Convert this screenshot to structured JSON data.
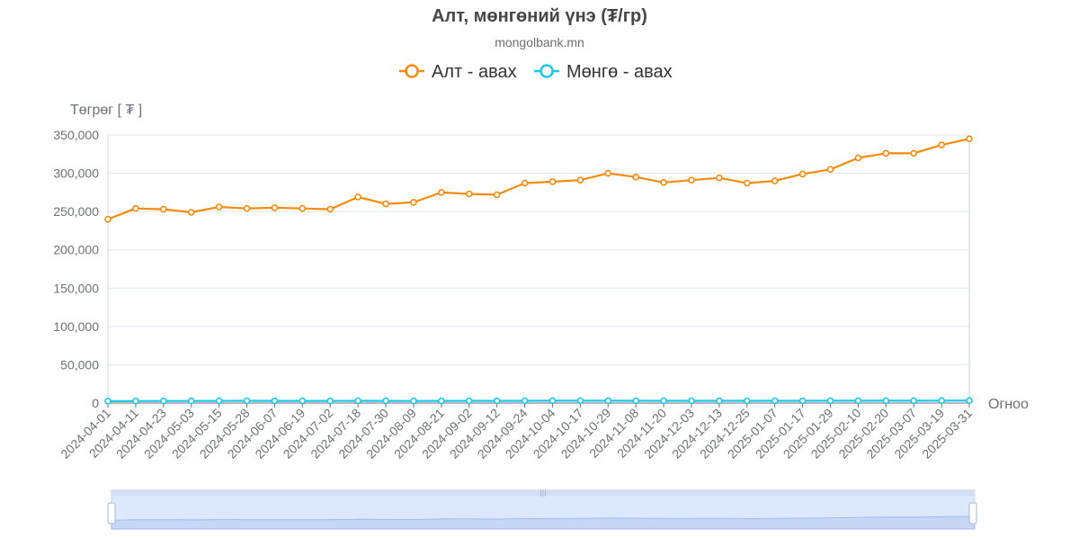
{
  "chart_data": {
    "type": "line",
    "title": "Алт, мөнгөний үнэ (₮/гр)",
    "subtitle": "mongolbank.mn",
    "ylabel": "Төгрөг [ ₮ ]",
    "xlabel": "Огноо",
    "ylim": [
      0,
      350000
    ],
    "y_ticks": [
      "0",
      "50,000",
      "100,000",
      "150,000",
      "200,000",
      "250,000",
      "300,000",
      "350,000"
    ],
    "grid": "horizontal",
    "legend_position": "top-center",
    "x": [
      "2024-04-01",
      "2024-04-11",
      "2024-04-23",
      "2024-05-03",
      "2024-05-15",
      "2024-05-28",
      "2024-06-07",
      "2024-06-19",
      "2024-07-02",
      "2024-07-18",
      "2024-07-30",
      "2024-08-09",
      "2024-08-21",
      "2024-09-02",
      "2024-09-12",
      "2024-09-24",
      "2024-10-04",
      "2024-10-17",
      "2024-10-29",
      "2024-11-08",
      "2024-11-20",
      "2024-12-03",
      "2024-12-13",
      "2024-12-25",
      "2025-01-07",
      "2025-01-17",
      "2025-01-29",
      "2025-02-10",
      "2025-02-20",
      "2025-03-07",
      "2025-03-19",
      "2025-03-31"
    ],
    "series": [
      {
        "name": "Алт - авах",
        "color": "#f58b0f",
        "values": [
          240000,
          254000,
          253000,
          249000,
          256000,
          254000,
          255000,
          254000,
          253000,
          269000,
          260000,
          262000,
          275000,
          273000,
          272000,
          287000,
          289000,
          291000,
          300000,
          295000,
          288000,
          291000,
          294000,
          287000,
          290000,
          299000,
          305000,
          320000,
          326000,
          326000,
          337000,
          345000
        ]
      },
      {
        "name": "Мөнгө - авах",
        "color": "#1ec7e8",
        "values": [
          2500,
          2600,
          2700,
          2700,
          2800,
          2900,
          2800,
          2800,
          2800,
          2900,
          2800,
          2700,
          2800,
          2900,
          2800,
          2900,
          3000,
          3000,
          3000,
          2900,
          2900,
          2900,
          2900,
          2900,
          2900,
          2900,
          3000,
          3100,
          3100,
          3100,
          3200,
          3300
        ]
      }
    ]
  },
  "dataZoom": {
    "start_pct": 0,
    "end_pct": 100,
    "handle_icon": "drag-handle-icon"
  }
}
